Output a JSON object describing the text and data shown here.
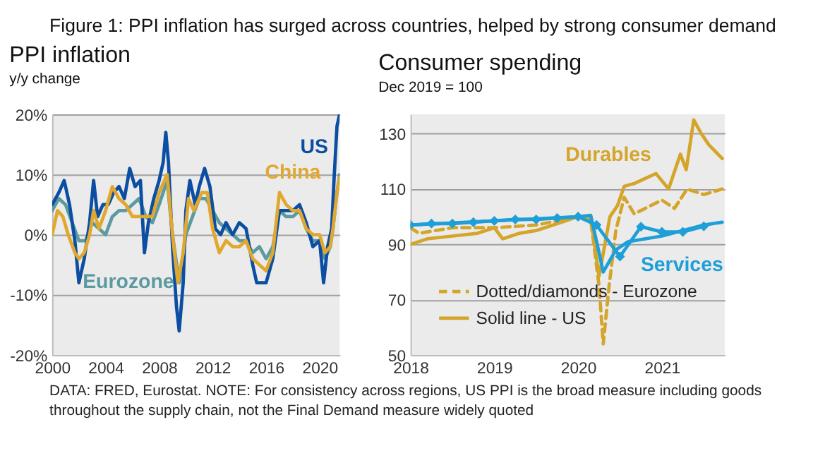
{
  "chart_data": [
    {
      "type": "other",
      "title": "Figure 1: PPI inflation has surged across countries, helped by strong consumer demand",
      "annotations": [
        "DATA: FRED, Eurostat. NOTE: For consistency across regions, US PPI is the broad measure including goods throughout the supply chain, not the Final Demand measure widely quoted"
      ]
    },
    {
      "type": "line",
      "title": "PPI inflation",
      "subtitle": "y/y change",
      "xlim": [
        2000,
        2021.5
      ],
      "xticks": [
        2000,
        2004,
        2008,
        2012,
        2016,
        2020
      ],
      "ylim": [
        -20,
        20
      ],
      "yticks": [
        {
          "value": -20,
          "label": "-20%"
        },
        {
          "value": -10,
          "label": "-10%"
        },
        {
          "value": 0,
          "label": "0%"
        },
        {
          "value": 10,
          "label": "10%"
        },
        {
          "value": 20,
          "label": "20%"
        }
      ],
      "grid": "y",
      "legend": false,
      "series": [
        {
          "name": "Eurozone",
          "color": "#5b9aa0",
          "x": [
            2000.0,
            2000.5,
            2001.0,
            2001.5,
            2002.0,
            2002.5,
            2003.0,
            2003.5,
            2004.0,
            2004.5,
            2005.0,
            2005.5,
            2006.0,
            2006.5,
            2007.0,
            2007.5,
            2008.0,
            2008.6,
            2009.0,
            2009.5,
            2010.0,
            2010.5,
            2011.0,
            2011.5,
            2012.0,
            2012.5,
            2013.0,
            2013.5,
            2014.0,
            2014.5,
            2015.0,
            2015.5,
            2016.0,
            2016.5,
            2017.0,
            2017.5,
            2018.0,
            2018.5,
            2019.0,
            2019.5,
            2020.0,
            2020.4,
            2020.8,
            2021.0,
            2021.3,
            2021.5
          ],
          "values": [
            4,
            6,
            5,
            2,
            -1,
            -1,
            2,
            1,
            0,
            3,
            4,
            4,
            5,
            6,
            3,
            2,
            5,
            9,
            0,
            -8,
            0,
            3,
            6,
            6,
            4,
            2,
            1,
            0,
            -1,
            -1,
            -3,
            -2,
            -4,
            -2,
            4,
            3,
            3,
            4,
            1,
            -1,
            -1,
            -4,
            -2,
            1,
            7,
            10
          ]
        },
        {
          "name": "US",
          "color": "#0b4ea2",
          "x": [
            2000.0,
            2000.5,
            2000.9,
            2001.3,
            2001.7,
            2002.0,
            2002.4,
            2002.8,
            2003.1,
            2003.4,
            2003.8,
            2004.2,
            2004.6,
            2005.0,
            2005.4,
            2005.8,
            2006.2,
            2006.6,
            2006.9,
            2007.2,
            2007.6,
            2008.0,
            2008.3,
            2008.5,
            2008.7,
            2009.0,
            2009.3,
            2009.5,
            2009.8,
            2010.0,
            2010.3,
            2010.7,
            2011.0,
            2011.4,
            2011.8,
            2012.2,
            2012.6,
            2013.0,
            2013.5,
            2014.0,
            2014.5,
            2015.0,
            2015.3,
            2015.7,
            2016.0,
            2016.5,
            2017.0,
            2017.5,
            2018.0,
            2018.5,
            2019.0,
            2019.5,
            2020.0,
            2020.3,
            2020.6,
            2020.9,
            2021.1,
            2021.3,
            2021.5
          ],
          "values": [
            5,
            7,
            9,
            5,
            -1,
            -8,
            -4,
            2,
            9,
            3,
            5,
            5,
            7,
            8,
            6,
            11,
            8,
            9,
            -3,
            2,
            6,
            9,
            12,
            17,
            12,
            -2,
            -12,
            -16,
            -8,
            4,
            9,
            5,
            8,
            11,
            8,
            1,
            0,
            2,
            0,
            2,
            1,
            -5,
            -8,
            -8,
            -8,
            -4,
            4,
            4,
            4,
            5,
            2,
            -2,
            -1,
            -8,
            -2,
            1,
            10,
            18,
            20
          ]
        },
        {
          "name": "China",
          "color": "#e0a82e",
          "x": [
            2000.0,
            2000.4,
            2000.8,
            2001.2,
            2001.7,
            2002.0,
            2002.4,
            2002.8,
            2003.1,
            2003.5,
            2004.0,
            2004.5,
            2005.0,
            2005.5,
            2006.0,
            2006.5,
            2007.0,
            2007.5,
            2008.0,
            2008.6,
            2009.0,
            2009.4,
            2009.8,
            2010.2,
            2010.6,
            2011.2,
            2011.6,
            2012.0,
            2012.5,
            2013.0,
            2013.5,
            2014.0,
            2014.5,
            2015.0,
            2015.5,
            2016.0,
            2016.5,
            2017.0,
            2017.5,
            2018.0,
            2018.5,
            2019.0,
            2019.5,
            2020.0,
            2020.4,
            2020.8,
            2021.0,
            2021.3,
            2021.5
          ],
          "values": [
            0,
            4,
            3,
            0,
            -3,
            -4,
            -3,
            0,
            4,
            1,
            4,
            8,
            6,
            5,
            3,
            3,
            3,
            3,
            7,
            10,
            0,
            -8,
            -3,
            6,
            4,
            7,
            7,
            1,
            -3,
            -1,
            -2,
            -2,
            -1,
            -4,
            -5,
            -6,
            -3,
            7,
            5,
            4,
            4,
            1,
            0,
            0,
            -3,
            -2,
            1,
            7,
            9.5
          ]
        }
      ]
    },
    {
      "type": "line",
      "title": "Consumer spending",
      "subtitle": "Dec 2019 = 100",
      "xlim": [
        2018,
        2021.75
      ],
      "xticks": [
        2018,
        2019,
        2020,
        2021
      ],
      "ylim": [
        50,
        137
      ],
      "yticks": [
        50,
        70,
        90,
        110,
        130
      ],
      "grid": "y",
      "legend": "bottom left",
      "annotations": [
        "Durables",
        "Services"
      ],
      "series": [
        {
          "name": "Dotted/diamonds - Eurozone",
          "color": "#d4a52a",
          "line_style": "dashed",
          "x": [
            2018.0,
            2018.1,
            2018.5,
            2019.0,
            2019.5,
            2020.0,
            2020.15,
            2020.25,
            2020.3,
            2020.37,
            2020.45,
            2020.55,
            2020.67,
            2020.8,
            2021.0,
            2021.15,
            2021.3,
            2021.5,
            2021.72
          ],
          "values": [
            96,
            94,
            96,
            96,
            97,
            100,
            99,
            75,
            54,
            75,
            95,
            107,
            101,
            103,
            106,
            103,
            110,
            108,
            110
          ]
        },
        {
          "name": "Solid line - US",
          "color": "#d4a52a",
          "line_style": "solid",
          "x": [
            2018.0,
            2018.2,
            2018.5,
            2018.8,
            2019.0,
            2019.1,
            2019.3,
            2019.5,
            2019.8,
            2020.0,
            2020.15,
            2020.25,
            2020.38,
            2020.47,
            2020.55,
            2020.67,
            2020.93,
            2021.08,
            2021.22,
            2021.29,
            2021.38,
            2021.47,
            2021.56,
            2021.72
          ],
          "values": [
            90,
            92,
            93,
            94,
            96,
            92,
            94,
            95,
            98,
            100,
            100,
            78.5,
            100,
            104,
            111,
            112,
            115.6,
            110,
            122.6,
            117,
            135,
            130,
            126,
            121
          ]
        },
        {
          "color": "#1e9fd8",
          "line_style": "solid",
          "x": [
            2018.0,
            2019.0,
            2020.0,
            2020.15,
            2020.25,
            2020.3,
            2020.45,
            2020.6,
            2021.0,
            2021.5,
            2021.72
          ],
          "values": [
            97,
            98.5,
            100,
            100.5,
            87,
            80,
            88,
            91,
            93,
            97,
            98
          ]
        },
        {
          "color": "#1e9fd8",
          "line_style": "solid",
          "marker": "diamond",
          "x": [
            2018.0,
            2018.25,
            2018.5,
            2018.75,
            2019.0,
            2019.25,
            2019.5,
            2019.75,
            2020.0,
            2020.22,
            2020.5,
            2020.75,
            2021.0,
            2021.25,
            2021.5
          ],
          "values": [
            97,
            97.5,
            97.5,
            98,
            98.5,
            99,
            99,
            99.5,
            100,
            97,
            85.6,
            96.4,
            94.5,
            94.5,
            96.5
          ]
        }
      ]
    }
  ]
}
